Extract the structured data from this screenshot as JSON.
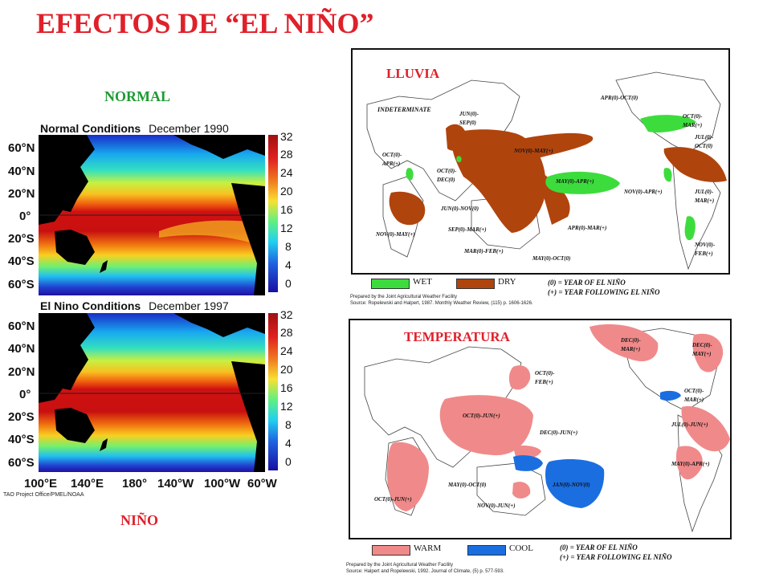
{
  "slide": {
    "title": "EFECTOS DE “EL NIÑO”",
    "normal_label": "NORMAL",
    "nino_label": "NIÑO",
    "lluvia_label": "LLUVIA",
    "temp_label": "TEMPERATURA"
  },
  "sst_maps": {
    "normal_caption_a": "Normal Conditions",
    "normal_caption_b": "December 1990",
    "nino_caption_a": "El Nino Conditions",
    "nino_caption_b": "December 1997",
    "lat_ticks": [
      "60°N",
      "40°N",
      "20°N",
      "0°",
      "20°S",
      "40°S",
      "60°S"
    ],
    "lon_ticks": [
      "100°E",
      "140°E",
      "180°",
      "140°W",
      "100°W",
      "60°W"
    ],
    "colorbar_ticks": [
      "32",
      "28",
      "24",
      "20",
      "16",
      "12",
      "8",
      "4",
      "0"
    ],
    "credit": "TAO Project Office/PMEL/NOAA"
  },
  "rain_map": {
    "annotations": {
      "indeterminate": "INDETERMINATE",
      "jun_sep": "JUN(0)-\nSEP(0)",
      "oct_apr": "OCT(0)-\nAPR(+)",
      "oct_dec": "OCT(0)-\nDEC(0)",
      "nov_may_top": "NOV(0)-MAY(+)",
      "may_apr": "MAY(0)-APR(+)",
      "jun_nov": "JUN(0)-NOV(0)",
      "sep_mar": "SEP(0)-MAR(+)",
      "mar_feb": "MAR(0)-FEB(+)",
      "may_oct": "MAY(0)-OCT(0)",
      "apr_mar": "APR(0)-MAR(+)",
      "nov_may_af": "NOV(0)-MAY(+)",
      "apr_oct": "APR(0)-OCT(0)",
      "oct_mar": "OCT(0)-\nMAR(+)",
      "jul_oct": "JUL(0)-\nOCT(0)",
      "nov_apr": "NOV(0)-APR(+)",
      "jul_mar": "JUL(0)-\nMAR(+)",
      "nov_feb": "NOV(0)-\nFEB(+)"
    },
    "legend_wet": "WET",
    "legend_dry": "DRY",
    "year_0": "(0) = YEAR OF EL NIÑO",
    "year_plus": "(+) = YEAR FOLLOWING EL NIÑO",
    "source_line1": "Prepared by the Joint Agricultural Weather Facility",
    "source_line2": "Source: Ropelewski and Halpert, 1987. Monthly Weather Review, (115) p. 1606-1626.",
    "colors": {
      "wet": "#3ddc3d",
      "dry": "#b0440d"
    }
  },
  "temp_map": {
    "annotations": {
      "dec_mar_top": "DEC(0)-\nMAR(+)",
      "dec_may": "DEC(0)-\nMAY(+)",
      "oct_feb": "OCT(0)-\nFEB(+)",
      "oct_jun": "OCT(0)-JUN(+)",
      "dec_jun": "DEC(0)-JUN(+)",
      "oct_mar": "OCT(0)-\nMAR(+)",
      "jul_jun": "JUL(0)-JUN(+)",
      "may_apr": "MAY(0)-APR(+)",
      "jan_nov": "JAN(0)-NOV(0)",
      "may_oct": "MAY(0)-OCT(0)",
      "oct_jun_af": "OCT(0)-JUN(+)",
      "nov_jun": "NOV(0)-JUN(+)"
    },
    "legend_warm": "WARM",
    "legend_cool": "COOL",
    "year_0": "(0) = YEAR OF EL NIÑO",
    "year_plus": "(+) = YEAR FOLLOWING EL NIÑO",
    "source_line1": "Prepared by the Joint Agricultural Weather Facility",
    "source_line2": "Source: Halpert and Ropelewski, 1992. Journal of Climate, (5) p. 577-593.",
    "colors": {
      "warm": "#f08a8a",
      "cool": "#1a6ee0"
    }
  }
}
